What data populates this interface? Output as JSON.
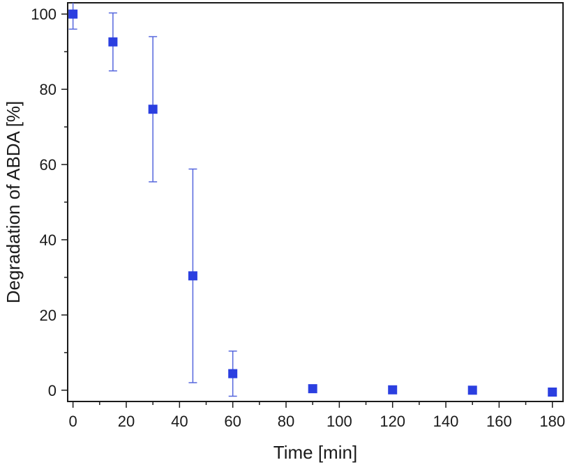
{
  "chart_data": {
    "type": "scatter",
    "title": "",
    "xlabel": "Time [min]",
    "ylabel": "Degradation of ABDA [%]",
    "xlim": [
      -2,
      184
    ],
    "ylim": [
      -3,
      103
    ],
    "x_ticks": [
      0,
      20,
      40,
      60,
      80,
      100,
      120,
      140,
      160,
      180
    ],
    "y_ticks": [
      0,
      20,
      40,
      60,
      80,
      100
    ],
    "grid": false,
    "legend": "none",
    "marker_color": "#2b3fe0",
    "error_color": "#5566dd",
    "series": [
      {
        "points": [
          {
            "x": 0,
            "y": 100,
            "err_low": 96,
            "err_high": 104
          },
          {
            "x": 15,
            "y": 92.6,
            "err_low": 84.9,
            "err_high": 100.3
          },
          {
            "x": 30,
            "y": 74.7,
            "err_low": 55.4,
            "err_high": 94
          },
          {
            "x": 45,
            "y": 30.4,
            "err_low": 2,
            "err_high": 58.8
          },
          {
            "x": 60,
            "y": 4.4,
            "err_low": -1.6,
            "err_high": 10.4
          },
          {
            "x": 90,
            "y": 0.4
          },
          {
            "x": 120,
            "y": 0.1
          },
          {
            "x": 150,
            "y": 0.0
          },
          {
            "x": 180,
            "y": -0.5
          }
        ]
      }
    ]
  }
}
